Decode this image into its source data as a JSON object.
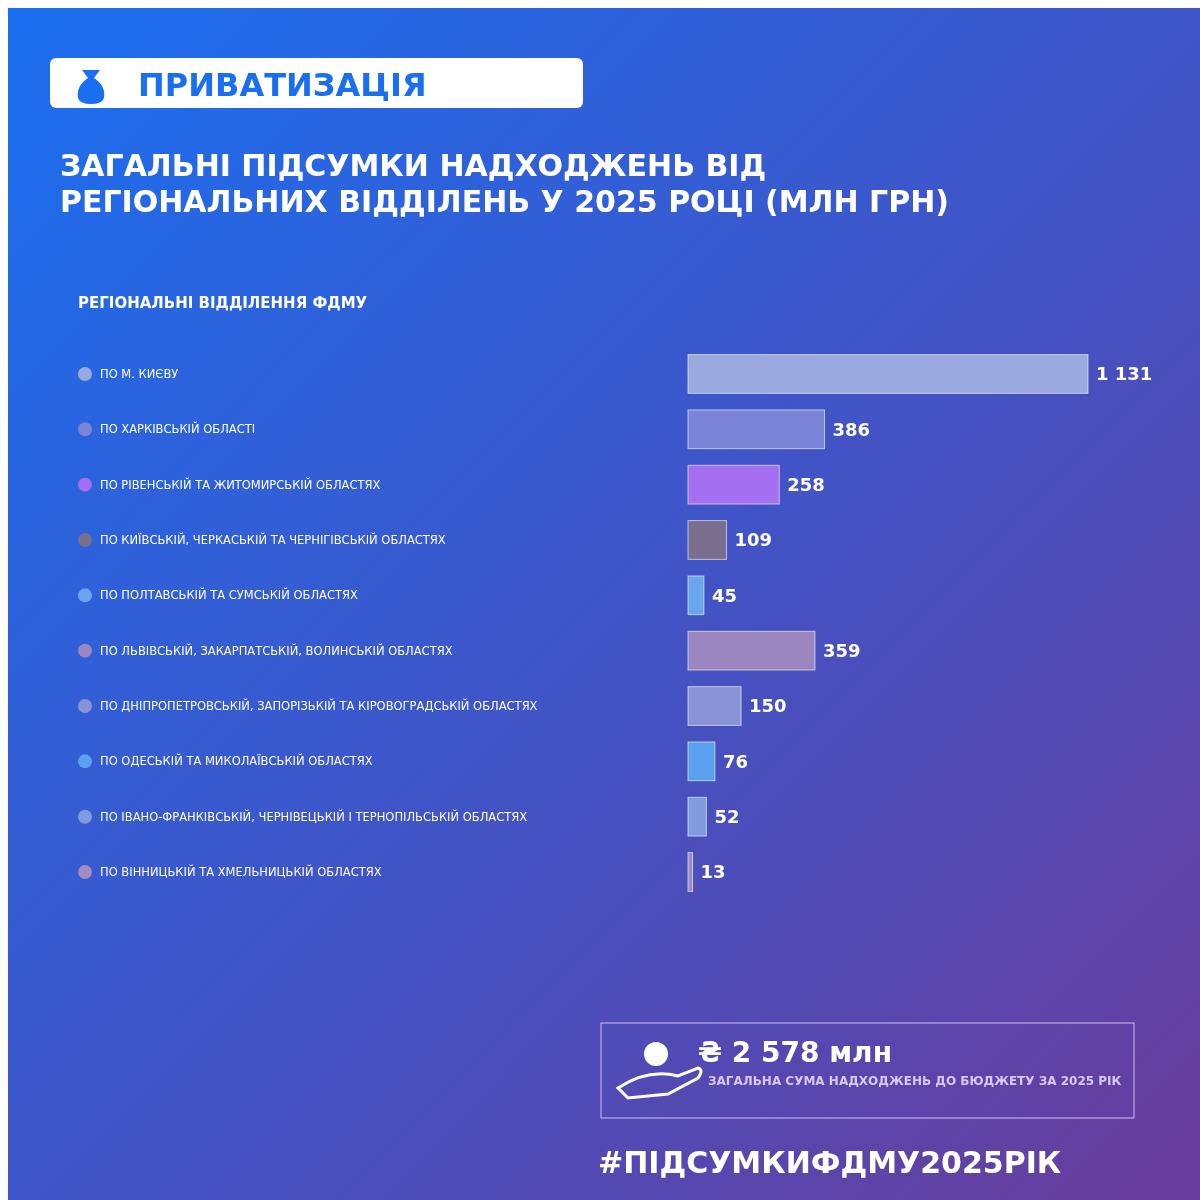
{
  "chart_data": {
    "type": "bar",
    "orientation": "horizontal",
    "title": "ЗАГАЛЬНІ ПІДСУМКИ НАДХОДЖЕНЬ ВІД РЕГІОНАЛЬНИХ ВІДДІЛЕНЬ У 2025 РОЦІ (МЛН ГРН)",
    "legend_title": "РЕГІОНАЛЬНІ ВІДДІЛЕННЯ ФДМУ",
    "categories": [
      "ПО М. КИЄВУ",
      "ПО ХАРКІВСЬКІЙ ОБЛАСТІ",
      "ПО РІВЕНСЬКІЙ ТА ЖИТОМИРСЬКІЙ ОБЛАСТЯХ",
      "ПО КИЇВСЬКІЙ, ЧЕРКАСЬКІЙ ТА ЧЕРНІГІВСЬКІЙ ОБЛАСТЯХ",
      "ПО ПОЛТАВСЬКІЙ ТА СУМСЬКІЙ ОБЛАСТЯХ",
      "ПО ЛЬВІВСЬКІЙ, ЗАКАРПАТСЬКІЙ, ВОЛИНСЬКІЙ ОБЛАСТЯХ",
      "ПО ДНІПРОПЕТРОВСЬКІЙ, ЗАПОРІЗЬКІЙ ТА КІРОВОГРАДСЬКІЙ ОБЛАСТЯХ",
      "ПО ОДЕСЬКІЙ ТА МИКОЛАЇВСЬКІЙ ОБЛАСТЯХ",
      "ПО ІВАНО-ФРАНКІВСЬКІЙ, ЧЕРНІВЕЦЬКІЙ І ТЕРНОПІЛЬСЬКІЙ ОБЛАСТЯХ",
      "ПО ВІННИЦЬКІЙ ТА ХМЕЛЬНИЦЬКІЙ ОБЛАСТЯХ"
    ],
    "values": [
      1131,
      386,
      258,
      109,
      45,
      359,
      150,
      76,
      52,
      13
    ],
    "value_labels": [
      "1 131",
      "386",
      "258",
      "109",
      "45",
      "359",
      "150",
      "76",
      "52",
      "13"
    ],
    "colors": [
      "#9aaae0",
      "#7c84d8",
      "#a46ff0",
      "#7a6e8e",
      "#6aa6ee",
      "#9b86c0",
      "#8a93d6",
      "#5aa0f0",
      "#7f9ce0",
      "#a08cc0"
    ],
    "annotations": [
      "ПРИВАТИЗАЦІЯ",
      "₴ 2 578 млн",
      "ЗАГАЛЬНА СУМА НАДХОДЖЕНЬ ДО БЮДЖЕТУ ЗА 2025 РІК",
      "#ПІДСУМКИФДМУ2025РІК"
    ]
  }
}
